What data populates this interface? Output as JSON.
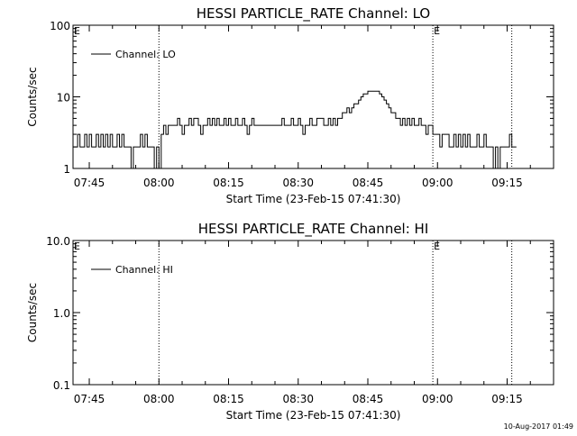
{
  "footer": {
    "timestamp": "10-Aug-2017 01:49"
  },
  "chart_data": [
    {
      "type": "line",
      "title": "HESSI PARTICLE_RATE Channel: LO",
      "xlabel": "Start Time (23-Feb-15 07:41:30)",
      "ylabel": "Counts/sec",
      "y_scale": "log",
      "xlim": [
        "07:41:30",
        "09:25:00"
      ],
      "ylim": [
        1,
        100
      ],
      "x_ticks": [
        "07:45",
        "08:00",
        "08:15",
        "08:30",
        "08:45",
        "09:00",
        "09:15"
      ],
      "y_ticks": [
        "1",
        "10",
        "100"
      ],
      "legend": {
        "entries": [
          "Channel: LO"
        ],
        "position": "top-left"
      },
      "markers": [
        {
          "time": "07:41:30",
          "label": "E",
          "style": "text"
        },
        {
          "time": "08:00",
          "label": "",
          "style": "dotted"
        },
        {
          "time": "08:59",
          "label": "E",
          "style": "dotted"
        },
        {
          "time": "09:16",
          "label": "",
          "style": "dotted"
        }
      ],
      "series": [
        {
          "name": "Channel: LO",
          "points": [
            [
              "07:41:30",
              2
            ],
            [
              "07:42:00",
              2
            ],
            [
              "07:42:30",
              3
            ],
            [
              "07:43:00",
              2
            ],
            [
              "07:43:30",
              2
            ],
            [
              "07:44:00",
              3
            ],
            [
              "07:44:30",
              2
            ],
            [
              "07:45:00",
              3
            ],
            [
              "07:45:30",
              2
            ],
            [
              "07:46:00",
              2
            ],
            [
              "07:46:30",
              3
            ],
            [
              "07:47:00",
              2
            ],
            [
              "07:47:30",
              3
            ],
            [
              "07:48:00",
              2
            ],
            [
              "07:48:30",
              3
            ],
            [
              "07:49:00",
              2
            ],
            [
              "07:49:30",
              3
            ],
            [
              "07:50:00",
              2
            ],
            [
              "07:50:30",
              2
            ],
            [
              "07:51:00",
              3
            ],
            [
              "07:51:30",
              2
            ],
            [
              "07:52:00",
              3
            ],
            [
              "07:52:30",
              2
            ],
            [
              "07:53:00",
              2
            ],
            [
              "07:53:30",
              2
            ],
            [
              "07:54:00",
              1
            ],
            [
              "07:54:30",
              2
            ],
            [
              "07:55:00",
              2
            ],
            [
              "07:55:30",
              2
            ],
            [
              "07:56:00",
              3
            ],
            [
              "07:56:30",
              2
            ],
            [
              "07:57:00",
              3
            ],
            [
              "07:57:30",
              2
            ],
            [
              "07:58:00",
              2
            ],
            [
              "07:58:30",
              2
            ],
            [
              "07:59:00",
              1
            ],
            [
              "07:59:30",
              2
            ],
            [
              "08:00:00",
              1
            ],
            [
              "08:00:30",
              3
            ],
            [
              "08:01:00",
              4
            ],
            [
              "08:01:30",
              3
            ],
            [
              "08:02:00",
              4
            ],
            [
              "08:03:00",
              4
            ],
            [
              "08:03:30",
              4
            ],
            [
              "08:04:00",
              5
            ],
            [
              "08:04:30",
              4
            ],
            [
              "08:05:00",
              3
            ],
            [
              "08:05:30",
              4
            ],
            [
              "08:06:00",
              4
            ],
            [
              "08:06:30",
              5
            ],
            [
              "08:07:00",
              4
            ],
            [
              "08:07:30",
              5
            ],
            [
              "08:08:00",
              5
            ],
            [
              "08:08:30",
              4
            ],
            [
              "08:09:00",
              3
            ],
            [
              "08:09:30",
              4
            ],
            [
              "08:10:00",
              4
            ],
            [
              "08:10:30",
              5
            ],
            [
              "08:11:00",
              4
            ],
            [
              "08:11:30",
              5
            ],
            [
              "08:12:00",
              4
            ],
            [
              "08:12:30",
              5
            ],
            [
              "08:13:00",
              4
            ],
            [
              "08:13:30",
              4
            ],
            [
              "08:14:00",
              5
            ],
            [
              "08:14:30",
              4
            ],
            [
              "08:15:00",
              5
            ],
            [
              "08:15:30",
              4
            ],
            [
              "08:16:00",
              4
            ],
            [
              "08:16:30",
              5
            ],
            [
              "08:17:00",
              4
            ],
            [
              "08:17:30",
              4
            ],
            [
              "08:18:00",
              5
            ],
            [
              "08:18:30",
              4
            ],
            [
              "08:19:00",
              3
            ],
            [
              "08:19:30",
              4
            ],
            [
              "08:20:00",
              5
            ],
            [
              "08:20:30",
              4
            ],
            [
              "08:21:00",
              4
            ],
            [
              "08:22:00",
              4
            ],
            [
              "08:23:00",
              4
            ],
            [
              "08:24:00",
              4
            ],
            [
              "08:25:00",
              4
            ],
            [
              "08:26:00",
              4
            ],
            [
              "08:26:30",
              5
            ],
            [
              "08:27:00",
              4
            ],
            [
              "08:27:30",
              4
            ],
            [
              "08:28:00",
              4
            ],
            [
              "08:28:30",
              5
            ],
            [
              "08:29:00",
              4
            ],
            [
              "08:29:30",
              4
            ],
            [
              "08:30:00",
              5
            ],
            [
              "08:30:30",
              4
            ],
            [
              "08:31:00",
              3
            ],
            [
              "08:31:30",
              4
            ],
            [
              "08:32:00",
              4
            ],
            [
              "08:32:30",
              5
            ],
            [
              "08:33:00",
              4
            ],
            [
              "08:34:00",
              5
            ],
            [
              "08:35:00",
              5
            ],
            [
              "08:35:30",
              4
            ],
            [
              "08:36:00",
              4
            ],
            [
              "08:36:30",
              5
            ],
            [
              "08:37:00",
              4
            ],
            [
              "08:37:30",
              5
            ],
            [
              "08:38:00",
              4
            ],
            [
              "08:38:30",
              5
            ],
            [
              "08:39:00",
              5
            ],
            [
              "08:39:30",
              6
            ],
            [
              "08:40:00",
              6
            ],
            [
              "08:40:30",
              7
            ],
            [
              "08:41:00",
              6
            ],
            [
              "08:41:30",
              7
            ],
            [
              "08:42:00",
              8
            ],
            [
              "08:42:30",
              8
            ],
            [
              "08:43:00",
              9
            ],
            [
              "08:43:30",
              10
            ],
            [
              "08:44:00",
              11
            ],
            [
              "08:44:30",
              11
            ],
            [
              "08:45:00",
              12
            ],
            [
              "08:45:30",
              12
            ],
            [
              "08:46:00",
              12
            ],
            [
              "08:46:30",
              12
            ],
            [
              "08:47:00",
              12
            ],
            [
              "08:47:30",
              11
            ],
            [
              "08:48:00",
              10
            ],
            [
              "08:48:30",
              9
            ],
            [
              "08:49:00",
              8
            ],
            [
              "08:49:30",
              7
            ],
            [
              "08:50:00",
              6
            ],
            [
              "08:50:30",
              6
            ],
            [
              "08:51:00",
              5
            ],
            [
              "08:51:30",
              5
            ],
            [
              "08:52:00",
              4
            ],
            [
              "08:52:30",
              5
            ],
            [
              "08:53:00",
              4
            ],
            [
              "08:53:30",
              5
            ],
            [
              "08:54:00",
              4
            ],
            [
              "08:54:30",
              5
            ],
            [
              "08:55:00",
              4
            ],
            [
              "08:55:30",
              4
            ],
            [
              "08:56:00",
              5
            ],
            [
              "08:56:30",
              4
            ],
            [
              "08:57:00",
              4
            ],
            [
              "08:57:30",
              3
            ],
            [
              "08:58:00",
              4
            ],
            [
              "08:58:30",
              4
            ],
            [
              "08:59:00",
              3
            ],
            [
              "08:59:30",
              3
            ],
            [
              "09:00:00",
              3
            ],
            [
              "09:00:30",
              2
            ],
            [
              "09:01:00",
              3
            ],
            [
              "09:01:30",
              3
            ],
            [
              "09:02:00",
              3
            ],
            [
              "09:02:30",
              2
            ],
            [
              "09:03:00",
              2
            ],
            [
              "09:03:30",
              3
            ],
            [
              "09:04:00",
              2
            ],
            [
              "09:04:30",
              3
            ],
            [
              "09:05:00",
              2
            ],
            [
              "09:05:30",
              3
            ],
            [
              "09:06:00",
              2
            ],
            [
              "09:06:30",
              3
            ],
            [
              "09:07:00",
              2
            ],
            [
              "09:08:00",
              2
            ],
            [
              "09:08:30",
              3
            ],
            [
              "09:09:00",
              2
            ],
            [
              "09:09:30",
              2
            ],
            [
              "09:10:00",
              3
            ],
            [
              "09:10:30",
              2
            ],
            [
              "09:11:00",
              2
            ],
            [
              "09:11:30",
              2
            ],
            [
              "09:12:00",
              1
            ],
            [
              "09:12:30",
              2
            ],
            [
              "09:13:00",
              1
            ],
            [
              "09:13:30",
              2
            ],
            [
              "09:14:00",
              2
            ],
            [
              "09:15:00",
              2
            ],
            [
              "09:15:30",
              3
            ],
            [
              "09:16:00",
              2
            ],
            [
              "09:17:00",
              2
            ]
          ]
        }
      ]
    },
    {
      "type": "line",
      "title": "HESSI PARTICLE_RATE Channel: HI",
      "xlabel": "Start Time (23-Feb-15 07:41:30)",
      "ylabel": "Counts/sec",
      "y_scale": "log",
      "xlim": [
        "07:41:30",
        "09:25:00"
      ],
      "ylim": [
        0.1,
        10.0
      ],
      "x_ticks": [
        "07:45",
        "08:00",
        "08:15",
        "08:30",
        "08:45",
        "09:00",
        "09:15"
      ],
      "y_ticks": [
        "0.1",
        "1.0",
        "10.0"
      ],
      "legend": {
        "entries": [
          "Channel: HI"
        ],
        "position": "top-left"
      },
      "markers": [
        {
          "time": "07:41:30",
          "label": "E",
          "style": "text"
        },
        {
          "time": "08:00",
          "label": "",
          "style": "dotted"
        },
        {
          "time": "08:59",
          "label": "E",
          "style": "dotted"
        },
        {
          "time": "09:16",
          "label": "",
          "style": "dotted"
        }
      ],
      "series": [
        {
          "name": "Channel: HI",
          "points": []
        }
      ]
    }
  ]
}
